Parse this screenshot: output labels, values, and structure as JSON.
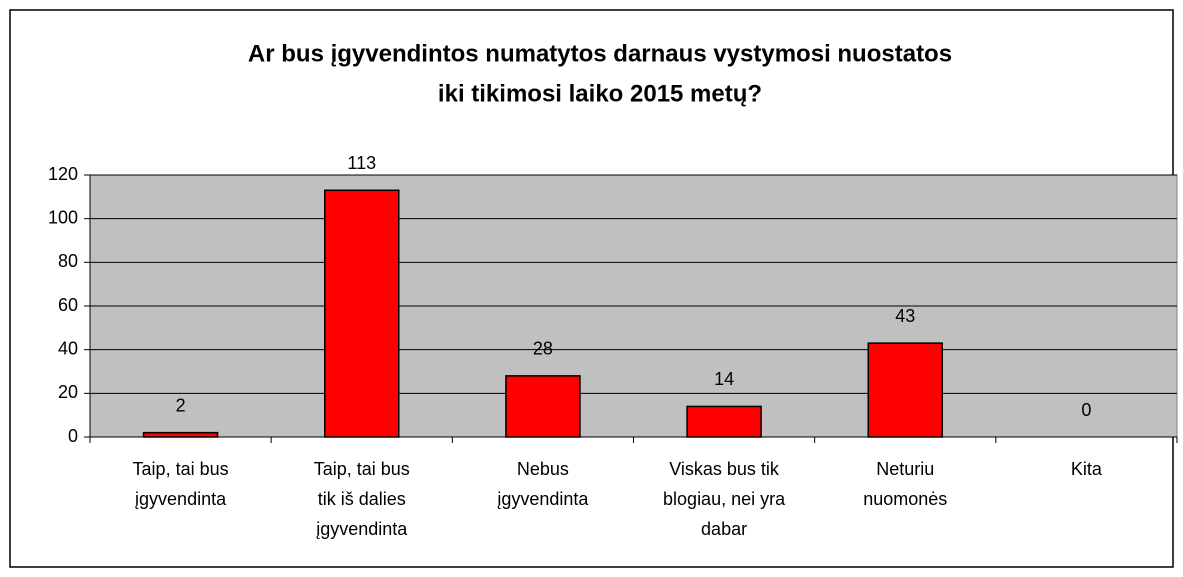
{
  "chart_data": {
    "type": "bar",
    "title": [
      "Ar bus įgyvendintos numatytos darnaus vystymosi nuostatos",
      "iki tikimosi laiko 2015 metų?"
    ],
    "categories": [
      [
        "Taip, tai bus",
        "įgyvendinta"
      ],
      [
        "Taip, tai bus",
        "tik iš dalies",
        "įgyvendinta"
      ],
      [
        "Nebus",
        "įgyvendinta"
      ],
      [
        "Viskas bus tik",
        "blogiau, nei yra",
        "dabar"
      ],
      [
        "Neturiu",
        "nuomonės"
      ],
      [
        "Kita"
      ]
    ],
    "values": [
      2,
      113,
      28,
      14,
      43,
      0
    ],
    "color": "#ff0000",
    "ylim": [
      0,
      120
    ],
    "yticks": [
      0,
      20,
      40,
      60,
      80,
      100,
      120
    ],
    "grid": true
  }
}
